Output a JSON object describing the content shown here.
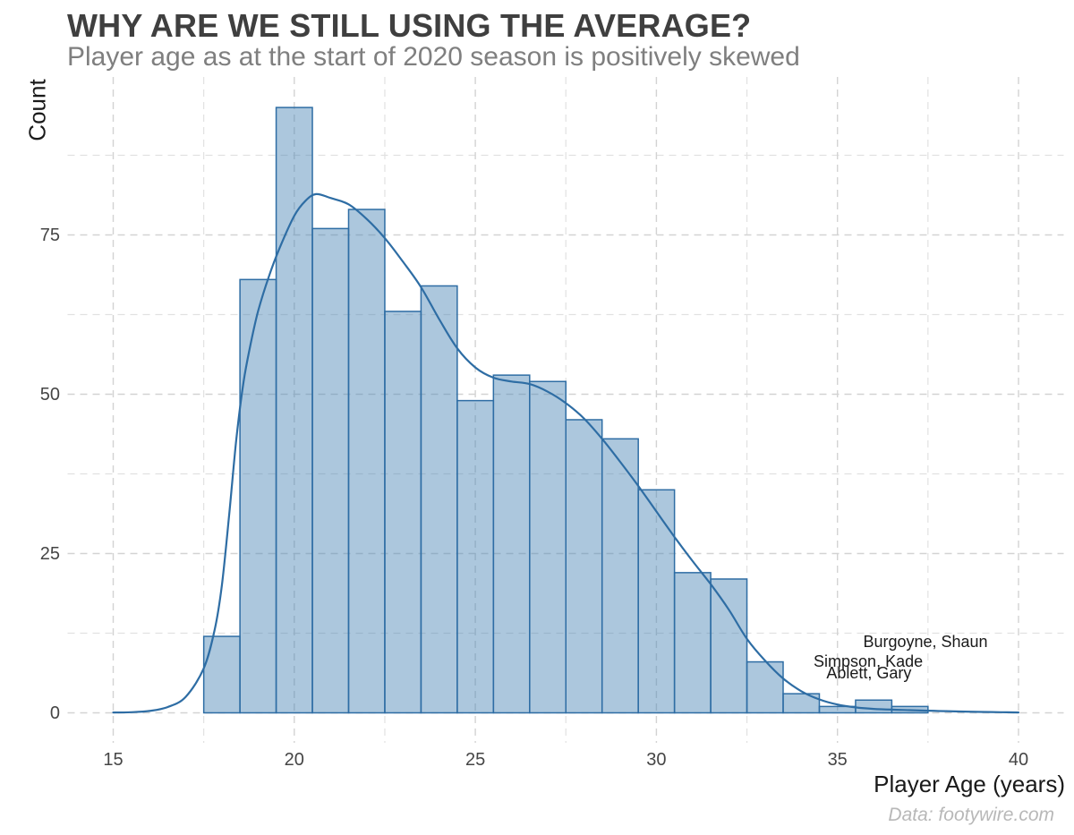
{
  "title": "WHY ARE WE STILL USING THE AVERAGE?",
  "subtitle": "Player age as at the start of 2020 season is positively skewed",
  "caption": "Data: footywire.com",
  "axes": {
    "x_label": "Player Age (years)",
    "y_label": "Count",
    "x_ticks": [
      15,
      20,
      25,
      30,
      35,
      40
    ],
    "y_ticks": [
      0,
      25,
      50,
      75
    ]
  },
  "colors": {
    "background": "#ffffff",
    "bar_fill": "#4682b4",
    "bar_fill_opacity": 0.45,
    "bar_stroke": "#2e6da4",
    "density_line": "#2e6da4",
    "grid_major": "#d3d3d3",
    "grid_minor": "#e1e1e1",
    "title": "#3f3f3f",
    "subtitle": "#7f7f7f",
    "axis_title": "#1a1a1a",
    "tick_label": "#454545",
    "caption": "#b8b8b8",
    "annotation": "#1a1a1a"
  },
  "chart_data": {
    "type": "bar",
    "subtype": "histogram-with-density",
    "title": "WHY ARE WE STILL USING THE AVERAGE?",
    "xlabel": "Player Age (years)",
    "ylabel": "Count",
    "xlim": [
      13.75,
      41.25
    ],
    "ylim": [
      -4.75,
      99.75
    ],
    "grid": "dashed, major every 5 years / 25 counts, minor at halfway",
    "legend": "none",
    "bin_width": 1,
    "bin_centers": [
      18,
      19,
      20,
      21,
      22,
      23,
      24,
      25,
      26,
      27,
      28,
      29,
      30,
      31,
      32,
      33,
      34,
      35,
      36,
      37
    ],
    "counts": [
      12,
      68,
      95,
      76,
      79,
      63,
      67,
      49,
      53,
      52,
      46,
      43,
      35,
      22,
      21,
      8,
      3,
      1,
      2,
      1
    ],
    "x_minor_gridlines": [
      17.5,
      22.5,
      27.5,
      32.5,
      37.5
    ],
    "y_minor_gridlines": [
      12.5,
      37.5,
      62.5,
      87.5
    ],
    "density_curve": [
      [
        15,
        0.05
      ],
      [
        15.5,
        0.1
      ],
      [
        16,
        0.3
      ],
      [
        16.5,
        0.9
      ],
      [
        17,
        2.5
      ],
      [
        17.5,
        7
      ],
      [
        17.8,
        13
      ],
      [
        18,
        20
      ],
      [
        18.2,
        31
      ],
      [
        18.4,
        43
      ],
      [
        18.6,
        52
      ],
      [
        18.8,
        58
      ],
      [
        19,
        63
      ],
      [
        19.3,
        68.5
      ],
      [
        19.6,
        73
      ],
      [
        20,
        78
      ],
      [
        20.3,
        80.3
      ],
      [
        20.6,
        81.4
      ],
      [
        21,
        80.8
      ],
      [
        21.5,
        79.8
      ],
      [
        22,
        77.5
      ],
      [
        22.5,
        74.5
      ],
      [
        23,
        70.8
      ],
      [
        23.5,
        66.8
      ],
      [
        24,
        61.8
      ],
      [
        24.5,
        57.2
      ],
      [
        25,
        54.2
      ],
      [
        25.5,
        52.6
      ],
      [
        26,
        52
      ],
      [
        26.5,
        51.6
      ],
      [
        27,
        50.4
      ],
      [
        27.5,
        48.6
      ],
      [
        28,
        46.2
      ],
      [
        28.5,
        43
      ],
      [
        29,
        39.4
      ],
      [
        29.5,
        35.6
      ],
      [
        30,
        31.6
      ],
      [
        30.5,
        27.6
      ],
      [
        31,
        23.8
      ],
      [
        31.5,
        20.2
      ],
      [
        32,
        16.2
      ],
      [
        32.5,
        11.6
      ],
      [
        33,
        8.2
      ],
      [
        33.5,
        5.4
      ],
      [
        34,
        3.4
      ],
      [
        34.5,
        2.1
      ],
      [
        35,
        1.3
      ],
      [
        35.5,
        0.85
      ],
      [
        36,
        0.62
      ],
      [
        36.5,
        0.5
      ],
      [
        37,
        0.42
      ],
      [
        37.5,
        0.34
      ],
      [
        38,
        0.26
      ],
      [
        38.5,
        0.2
      ],
      [
        39,
        0.14
      ],
      [
        39.5,
        0.1
      ],
      [
        40,
        0.06
      ]
    ],
    "annotations": [
      {
        "text": "Burgoyne, Shaun",
        "age": 37.43,
        "count": 11.0
      },
      {
        "text": "Simpson, Kade",
        "age": 35.85,
        "count": 7.9
      },
      {
        "text": "Ablett, Gary",
        "age": 35.87,
        "count": 6.1
      }
    ]
  }
}
